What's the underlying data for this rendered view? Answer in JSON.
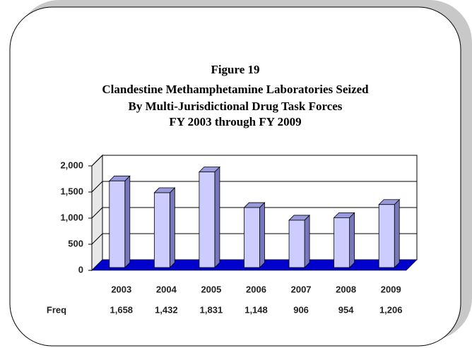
{
  "chart_data": {
    "type": "bar",
    "title": "Figure 19",
    "subtitle": [
      "Clandestine Methamphetamine Laboratories Seized",
      "By Multi-Jurisdictional Drug Task Forces",
      "FY 2003 through FY 2009"
    ],
    "categories": [
      "2003",
      "2004",
      "2005",
      "2006",
      "2007",
      "2008",
      "2009"
    ],
    "values": [
      1658,
      1432,
      1831,
      1148,
      906,
      954,
      1206
    ],
    "value_labels": [
      "1,658",
      "1,432",
      "1,831",
      "1,148",
      "906",
      "954",
      "1,206"
    ],
    "data_table_label": "Freq",
    "color": "#ccccff",
    "floor_color": "#0000cc",
    "ylim": [
      0,
      2000
    ],
    "yticks": [
      0,
      500,
      {
        "value": 1000,
        "label": "1,000"
      },
      {
        "value": 1500,
        "label": "1,500"
      },
      {
        "value": 2000,
        "label": "2,000"
      }
    ],
    "grid": true
  }
}
